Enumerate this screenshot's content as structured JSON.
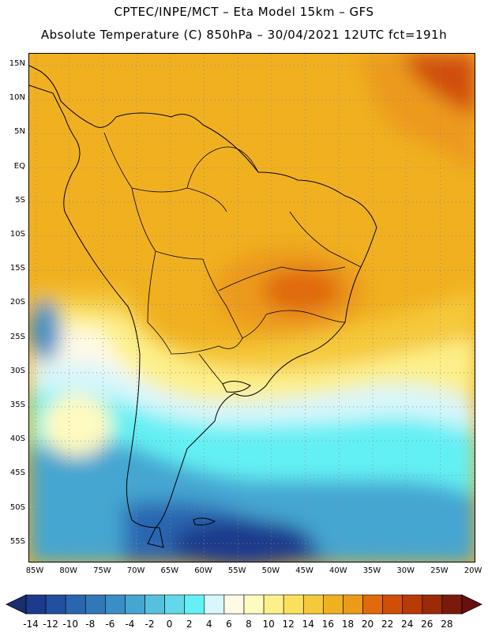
{
  "header": {
    "line1": "CPTEC/INPE/MCT –   Eta Model 15km – GFS",
    "line2": "Absolute Temperature (C) 850hPa – 30/04/2021 12UTC fct=191h"
  },
  "map": {
    "lat_labels": [
      "15N",
      "10N",
      "5N",
      "EQ",
      "5S",
      "10S",
      "15S",
      "20S",
      "25S",
      "30S",
      "35S",
      "40S",
      "45S",
      "50S",
      "55S"
    ],
    "lon_labels": [
      "85W",
      "80W",
      "75W",
      "70W",
      "65W",
      "60W",
      "55W",
      "50W",
      "45W",
      "40W",
      "35W",
      "30W",
      "25W",
      "20W"
    ]
  },
  "colorbar": {
    "labels": [
      "-14",
      "-12",
      "-10",
      "-8",
      "-6",
      "-4",
      "-2",
      "0",
      "2",
      "4",
      "6",
      "8",
      "10",
      "12",
      "14",
      "16",
      "18",
      "20",
      "22",
      "24",
      "26",
      "28"
    ],
    "colors": [
      "#1d3a8c",
      "#2150a0",
      "#2a66b0",
      "#3178b8",
      "#3a8ec6",
      "#45a6d2",
      "#56c1de",
      "#62d8ea",
      "#64f0f4",
      "#d8f6fb",
      "#fff9e6",
      "#fefac0",
      "#fdf08a",
      "#fbe05e",
      "#f5c93a",
      "#f0b020",
      "#ec9a1a",
      "#e06a0c",
      "#d04e08",
      "#b83a06",
      "#9a2a08",
      "#7a1a0c"
    ]
  },
  "icons": {
    "left_arrow": "triangle-left-icon",
    "right_arrow": "triangle-right-icon"
  }
}
